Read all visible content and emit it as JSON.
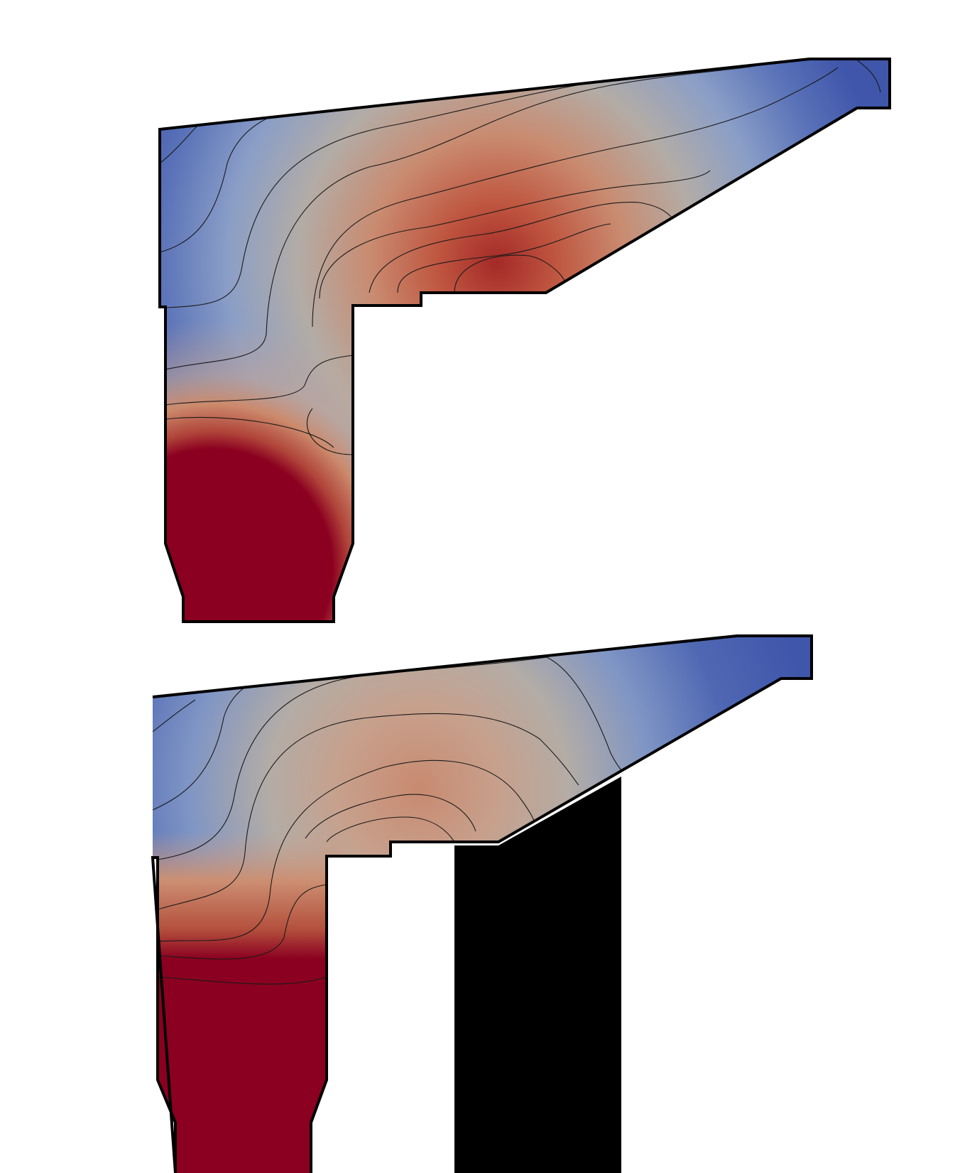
{
  "colors": {
    "background": "#ffffff",
    "outline": "#000000",
    "contour": "#1a1a1a",
    "black_block": "#000000",
    "cold": "#3b4fa8",
    "mid": "#b8aaa0",
    "hot": "#8b0020"
  },
  "panels": [
    {
      "name": "top-panel",
      "has_black_block": false,
      "hot_spot": "flange-interior",
      "contour_levels": 9
    },
    {
      "name": "bottom-panel",
      "has_black_block": true,
      "hot_spot": "web-bottom",
      "contour_levels": 8
    }
  ]
}
